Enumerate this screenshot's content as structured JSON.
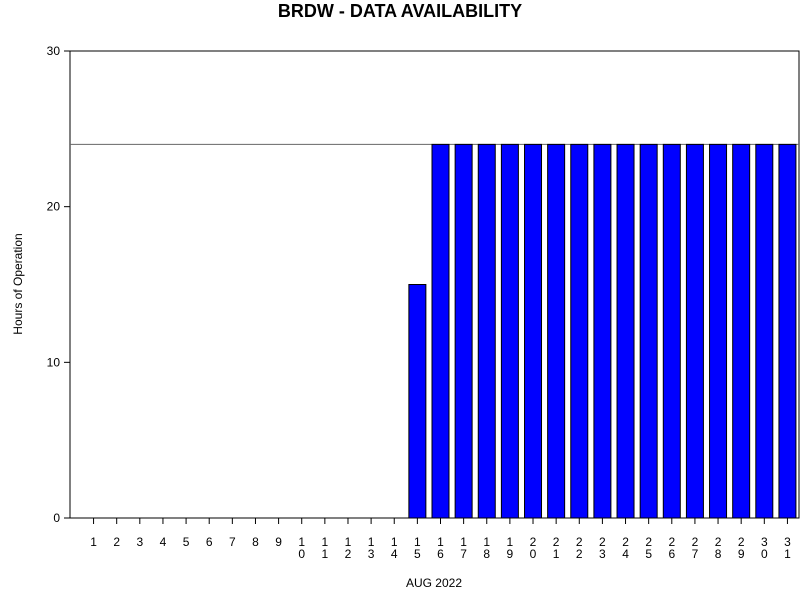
{
  "chart_data": {
    "type": "bar",
    "title": "BRDW - DATA AVAILABILITY",
    "xlabel": "AUG 2022",
    "ylabel": "Hours of Operation",
    "ylim": [
      0,
      30
    ],
    "yticks": [
      0,
      10,
      20,
      30
    ],
    "reference_line": 24,
    "grid": false,
    "bar_color": "#0000ff",
    "categories": [
      "1",
      "2",
      "3",
      "4",
      "5",
      "6",
      "7",
      "8",
      "9",
      "10",
      "11",
      "12",
      "13",
      "14",
      "15",
      "16",
      "17",
      "18",
      "19",
      "20",
      "21",
      "22",
      "23",
      "24",
      "25",
      "26",
      "27",
      "28",
      "29",
      "30",
      "31"
    ],
    "values": [
      0,
      0,
      0,
      0,
      0,
      0,
      0,
      0,
      0,
      0,
      0,
      0,
      0,
      0,
      15,
      24,
      24,
      24,
      24,
      24,
      24,
      24,
      24,
      24,
      24,
      24,
      24,
      24,
      24,
      24,
      24
    ]
  }
}
